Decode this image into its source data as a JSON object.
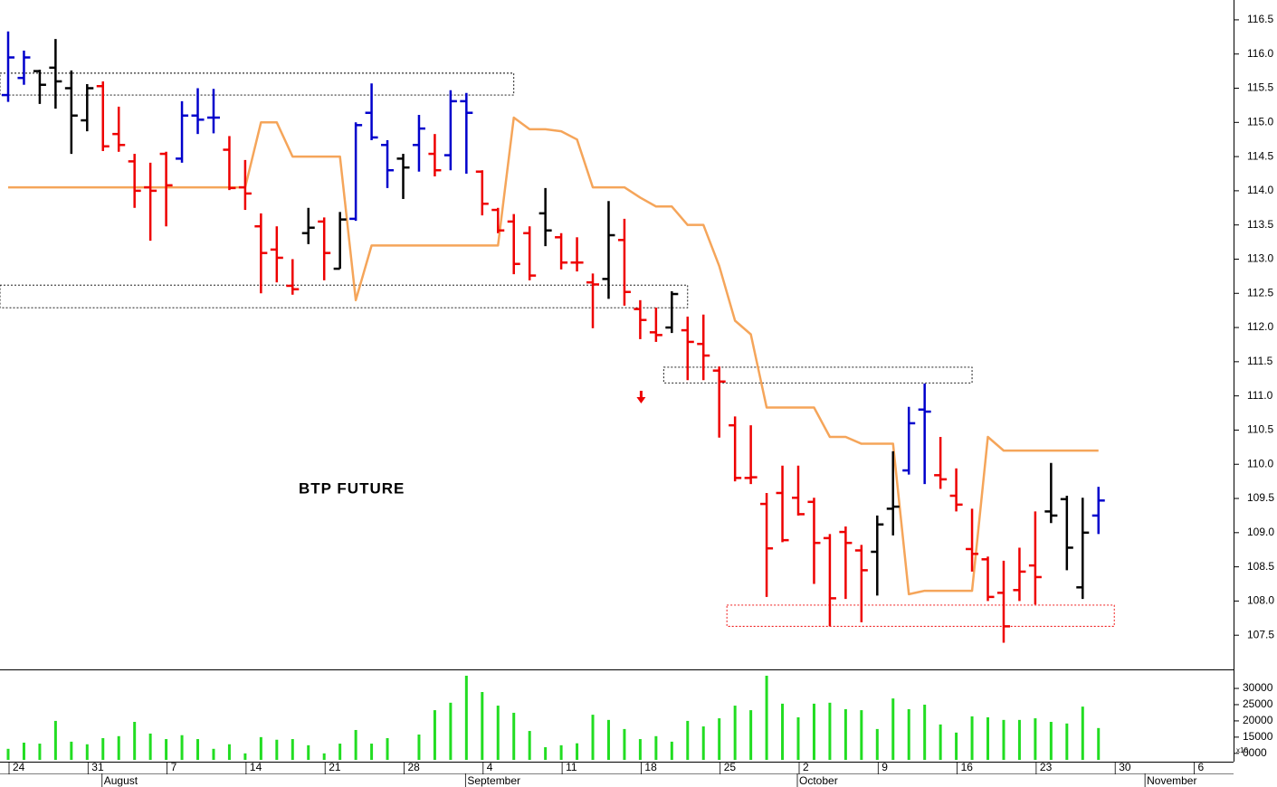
{
  "chart_data": {
    "type": "ohlc",
    "title": "BTP FUTURE",
    "categories": [
      "24",
      null,
      null,
      null,
      null,
      "31",
      null,
      null,
      null,
      null,
      "7",
      null,
      null,
      null,
      null,
      "14",
      null,
      null,
      null,
      null,
      "21",
      null,
      null,
      null,
      null,
      "28",
      null,
      null,
      null,
      null,
      "4",
      null,
      null,
      null,
      null,
      "11",
      null,
      null,
      null,
      null,
      "18",
      null,
      null,
      null,
      null,
      "25",
      null,
      null,
      null,
      null,
      "2",
      null,
      null,
      null,
      null,
      "9",
      null,
      null,
      null,
      null,
      "16",
      null,
      null,
      null,
      null,
      "23",
      null,
      null,
      null,
      null,
      "30",
      null,
      null,
      null,
      null,
      "6",
      null,
      null
    ],
    "month_labels": [
      null,
      null,
      null,
      null,
      null,
      null,
      "August",
      null,
      null,
      null,
      null,
      null,
      null,
      null,
      null,
      null,
      null,
      null,
      null,
      null,
      null,
      null,
      null,
      null,
      null,
      null,
      null,
      null,
      null,
      "September",
      null,
      null,
      null,
      null,
      null,
      null,
      null,
      null,
      null,
      null,
      null,
      null,
      null,
      null,
      null,
      null,
      null,
      null,
      null,
      null,
      "October",
      null,
      null,
      null,
      null,
      null,
      null,
      null,
      null,
      null,
      null,
      null,
      null,
      null,
      null,
      null,
      null,
      null,
      null,
      null,
      null,
      null,
      "November",
      null,
      null,
      null,
      null,
      null
    ],
    "open": [
      115.4,
      115.65,
      115.75,
      115.8,
      115.5,
      115.03,
      115.53,
      114.83,
      114.43,
      114.05,
      114.54,
      114.47,
      115.1,
      115.07,
      114.6,
      114.05,
      113.48,
      113.14,
      112.61,
      113.38,
      113.55,
      112.86,
      113.59,
      115.14,
      114.67,
      114.47,
      114.67,
      114.54,
      114.52,
      115.31,
      114.28,
      113.72,
      113.55,
      113.38,
      113.67,
      113.32,
      112.95,
      112.66,
      112.71,
      113.28,
      112.27,
      111.93,
      112.0,
      111.96,
      111.76,
      111.37,
      110.57,
      109.8,
      109.42,
      109.58,
      109.51,
      109.45,
      108.92,
      109.01,
      108.74,
      108.72,
      109.35,
      109.91,
      110.8,
      109.84,
      109.54,
      108.76,
      108.61,
      108.12,
      108.16,
      108.52,
      109.31,
      109.49,
      108.2,
      109.25,
      null,
      null,
      null,
      null,
      null,
      null,
      null,
      null
    ],
    "high": [
      116.33,
      116.05,
      115.77,
      116.22,
      115.76,
      115.56,
      115.6,
      115.23,
      114.54,
      114.41,
      114.57,
      115.31,
      115.5,
      115.49,
      114.8,
      114.45,
      113.67,
      113.48,
      113.0,
      113.75,
      113.61,
      113.69,
      115.0,
      115.57,
      114.74,
      114.54,
      115.11,
      114.83,
      115.47,
      115.43,
      114.3,
      113.75,
      113.66,
      113.48,
      114.04,
      113.38,
      113.32,
      112.79,
      113.85,
      113.59,
      112.4,
      112.29,
      112.53,
      112.16,
      112.19,
      111.43,
      110.7,
      110.57,
      109.58,
      109.98,
      109.98,
      109.51,
      108.98,
      109.09,
      108.82,
      109.25,
      110.19,
      110.84,
      111.18,
      110.4,
      109.94,
      109.35,
      108.65,
      108.59,
      108.78,
      109.31,
      110.02,
      109.54,
      109.51,
      109.67,
      null,
      null,
      null,
      null,
      null,
      null,
      null,
      null
    ],
    "low": [
      115.3,
      115.55,
      115.27,
      115.2,
      114.54,
      114.87,
      114.58,
      114.57,
      113.75,
      113.27,
      113.48,
      114.41,
      114.83,
      114.84,
      114.01,
      113.72,
      112.5,
      112.66,
      112.48,
      113.22,
      112.69,
      112.86,
      113.56,
      114.74,
      114.04,
      113.88,
      114.28,
      114.21,
      114.3,
      114.25,
      113.64,
      113.38,
      112.78,
      112.69,
      113.19,
      112.85,
      112.82,
      111.99,
      112.42,
      112.32,
      111.83,
      111.79,
      111.92,
      111.23,
      111.23,
      110.39,
      109.75,
      109.71,
      108.06,
      108.86,
      109.25,
      108.25,
      107.63,
      108.03,
      107.69,
      108.08,
      108.96,
      109.85,
      109.71,
      109.64,
      109.31,
      108.43,
      108.0,
      107.39,
      108.0,
      107.95,
      109.14,
      108.45,
      108.03,
      108.98,
      null,
      null,
      null,
      null,
      null,
      null,
      null,
      null
    ],
    "close": [
      115.95,
      115.95,
      115.55,
      115.6,
      115.1,
      115.5,
      114.65,
      114.67,
      114.0,
      114.0,
      114.08,
      115.1,
      115.04,
      115.07,
      114.04,
      113.96,
      113.09,
      113.02,
      112.56,
      113.46,
      113.09,
      113.58,
      114.96,
      114.78,
      114.3,
      114.34,
      114.91,
      114.3,
      115.31,
      115.14,
      113.81,
      113.42,
      112.93,
      112.76,
      113.42,
      112.95,
      112.95,
      112.63,
      113.35,
      112.52,
      112.11,
      111.89,
      112.49,
      111.79,
      111.59,
      111.21,
      109.8,
      109.81,
      108.77,
      108.89,
      109.27,
      108.85,
      108.04,
      108.85,
      108.45,
      109.12,
      109.38,
      110.6,
      110.77,
      109.78,
      109.41,
      108.69,
      108.06,
      107.63,
      108.43,
      108.35,
      109.25,
      108.78,
      109.0,
      109.47,
      null,
      null,
      null,
      null,
      null,
      null,
      null,
      null
    ],
    "bar_colors": [
      "#0000cc",
      "#0000cc",
      "#000000",
      "#000000",
      "#000000",
      "#000000",
      "#ee0000",
      "#ee0000",
      "#ee0000",
      "#ee0000",
      "#ee0000",
      "#0000cc",
      "#0000cc",
      "#0000cc",
      "#ee0000",
      "#ee0000",
      "#ee0000",
      "#ee0000",
      "#ee0000",
      "#000000",
      "#ee0000",
      "#000000",
      "#0000cc",
      "#0000cc",
      "#0000cc",
      "#000000",
      "#0000cc",
      "#ee0000",
      "#0000cc",
      "#0000cc",
      "#ee0000",
      "#ee0000",
      "#ee0000",
      "#ee0000",
      "#000000",
      "#ee0000",
      "#ee0000",
      "#ee0000",
      "#000000",
      "#ee0000",
      "#ee0000",
      "#ee0000",
      "#000000",
      "#ee0000",
      "#ee0000",
      "#ee0000",
      "#ee0000",
      "#ee0000",
      "#ee0000",
      "#ee0000",
      "#ee0000",
      "#ee0000",
      "#ee0000",
      "#ee0000",
      "#ee0000",
      "#000000",
      "#000000",
      "#0000cc",
      "#0000cc",
      "#ee0000",
      "#ee0000",
      "#ee0000",
      "#ee0000",
      "#ee0000",
      "#ee0000",
      "#ee0000",
      "#000000",
      "#000000",
      "#000000",
      "#0000cc",
      null,
      null,
      null,
      null,
      null,
      null,
      null,
      null
    ],
    "stop_line": {
      "color": "#f5a55a",
      "values": [
        114.05,
        114.05,
        114.05,
        114.05,
        114.05,
        114.05,
        114.05,
        114.05,
        114.05,
        114.05,
        114.05,
        114.05,
        114.05,
        114.05,
        114.05,
        114.05,
        115.0,
        115.0,
        114.5,
        114.5,
        114.5,
        114.5,
        112.4,
        113.2,
        113.2,
        113.2,
        113.2,
        113.2,
        113.2,
        113.2,
        113.2,
        113.2,
        115.07,
        114.9,
        114.9,
        114.87,
        114.75,
        114.05,
        114.05,
        114.05,
        113.9,
        113.77,
        113.77,
        113.5,
        113.5,
        112.9,
        112.1,
        111.9,
        110.83,
        110.83,
        110.83,
        110.83,
        110.4,
        110.4,
        110.3,
        110.3,
        110.3,
        108.1,
        108.15,
        108.15,
        108.15,
        108.15,
        110.4,
        110.2,
        110.2,
        110.2,
        110.2,
        110.2,
        110.2,
        110.2,
        null,
        null,
        null,
        null,
        null,
        null,
        null,
        null
      ]
    },
    "ylim": [
      107.0,
      116.79
    ],
    "yticks": [
      107.5,
      {
        "value": 108,
        "label": "108.0"
      },
      108.5,
      {
        "value": 109,
        "label": "109.0"
      },
      109.5,
      {
        "value": 110,
        "label": "110.0"
      },
      110.5,
      {
        "value": 111,
        "label": "111.0"
      },
      111.5,
      {
        "value": 112,
        "label": "112.0"
      },
      112.5,
      {
        "value": 113,
        "label": "113.0"
      },
      113.5,
      {
        "value": 114,
        "label": "114.0"
      },
      114.5,
      {
        "value": 115,
        "label": "115.0"
      },
      115.5,
      {
        "value": 116,
        "label": "116.0"
      },
      116.5
    ],
    "zones": [
      {
        "from": 0,
        "to": 32,
        "low": 115.4,
        "high": 115.72,
        "color": "#000000"
      },
      {
        "from": 0,
        "to": 43,
        "low": 112.29,
        "high": 112.62,
        "color": "#000000"
      },
      {
        "from": 42,
        "to": 61,
        "low": 111.19,
        "high": 111.42,
        "color": "#000000"
      },
      {
        "from": 46,
        "to": 70,
        "low": 107.63,
        "high": 107.94,
        "color": "#ee0000"
      }
    ],
    "signal": {
      "index": 40,
      "price": 110.89,
      "color": "#ee0000"
    },
    "volume": {
      "color": "#22dd22",
      "scale_label": "x10",
      "values": [
        11400,
        13300,
        13000,
        20000,
        13600,
        12800,
        14700,
        15300,
        19700,
        16100,
        14400,
        15600,
        14400,
        11400,
        12800,
        10000,
        15000,
        14200,
        14400,
        12500,
        10000,
        13000,
        17200,
        13000,
        14700,
        null,
        15800,
        23300,
        25600,
        33900,
        28900,
        24700,
        22500,
        16900,
        11900,
        12500,
        13100,
        21900,
        20300,
        17500,
        14400,
        15300,
        13600,
        20000,
        18300,
        20800,
        24700,
        23300,
        33900,
        25300,
        21100,
        25300,
        25600,
        23600,
        23300,
        17500,
        26900,
        23600,
        25000,
        18900,
        16400,
        21400,
        21100,
        20300,
        20300,
        20800,
        19700,
        19200,
        24400,
        17800,
        null,
        null,
        null,
        null,
        null,
        null,
        null,
        null
      ],
      "ylim": [
        8000,
        35300
      ],
      "yticks": [
        {
          "value": 10000,
          "label": "0000"
        },
        15000,
        20000,
        25000,
        30000
      ]
    }
  }
}
